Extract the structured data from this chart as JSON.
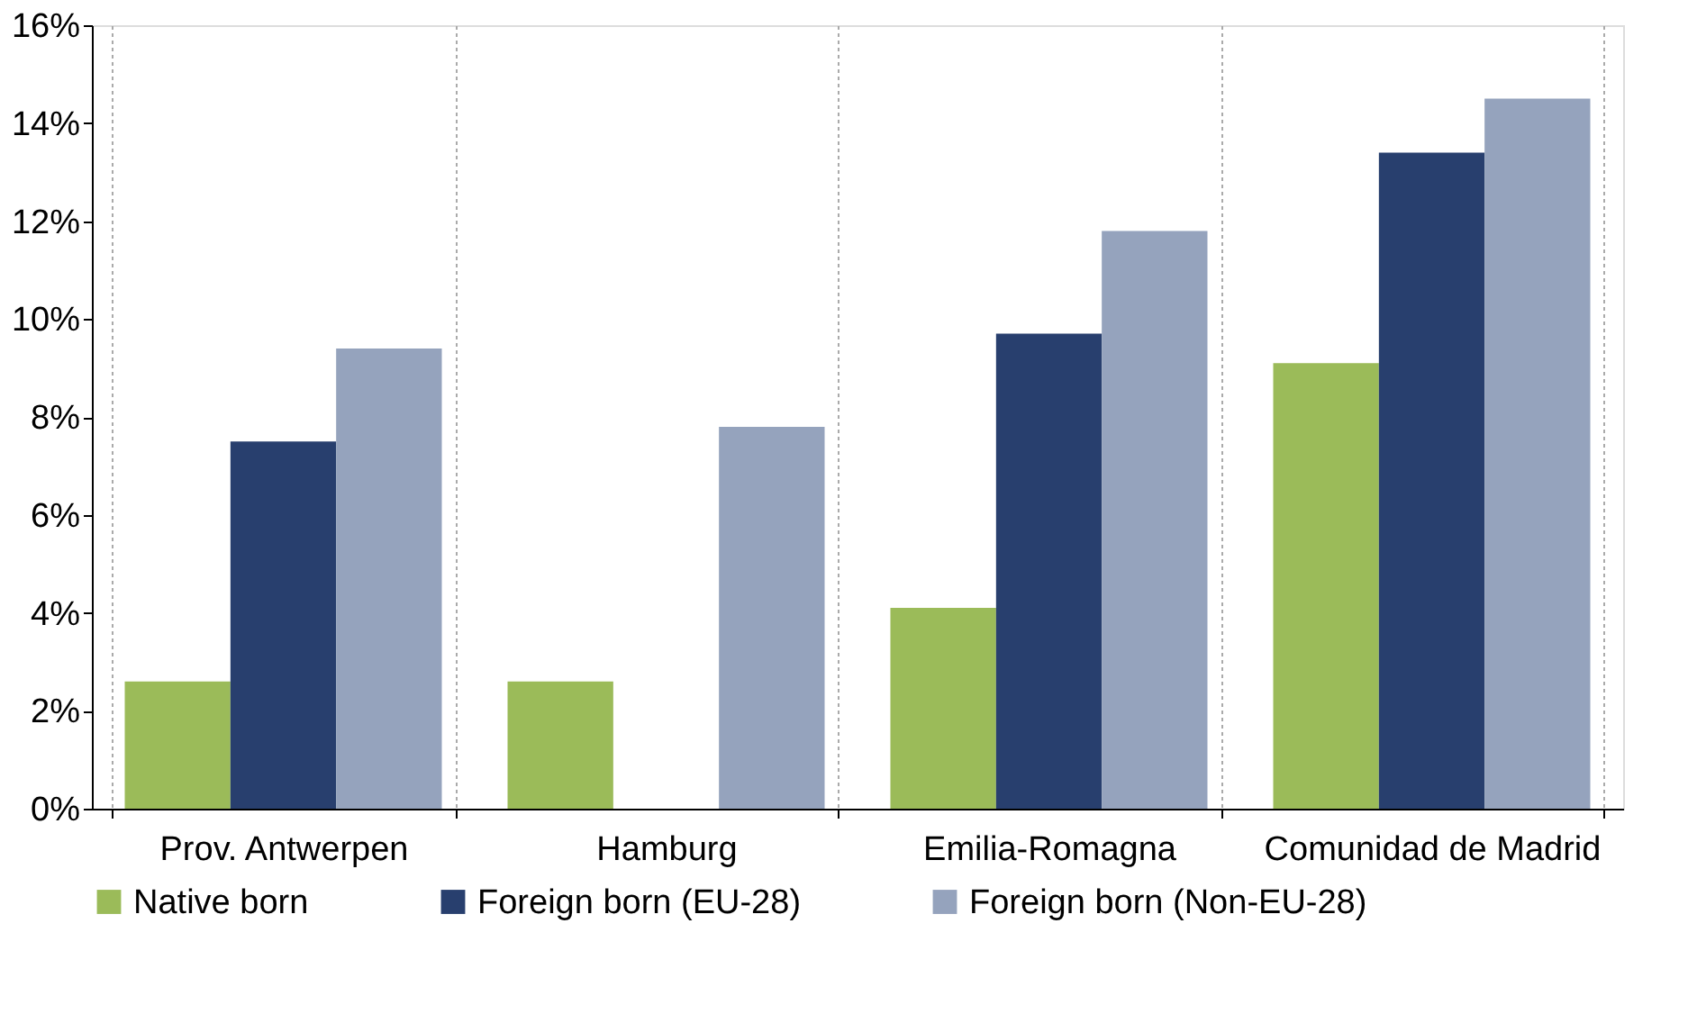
{
  "chart_data": {
    "type": "bar",
    "categories": [
      "Prov. Antwerpen",
      "Hamburg",
      "Emilia-Romagna",
      "Comunidad de Madrid"
    ],
    "series": [
      {
        "name": "Native born",
        "color": "#9bbb59",
        "values": [
          2.6,
          2.6,
          4.1,
          9.1
        ]
      },
      {
        "name": "Foreign born (EU-28)",
        "color": "#283f6e",
        "values": [
          7.5,
          null,
          9.7,
          13.4
        ]
      },
      {
        "name": "Foreign born (Non-EU-28)",
        "color": "#95a3bd",
        "values": [
          9.4,
          7.8,
          11.8,
          14.5
        ]
      }
    ],
    "ylim": [
      0,
      16
    ],
    "yticks": [
      {
        "value": 0,
        "label": "0%"
      },
      {
        "value": 2,
        "label": "2%"
      },
      {
        "value": 4,
        "label": "4%"
      },
      {
        "value": 6,
        "label": "6%"
      },
      {
        "value": 8,
        "label": "8%"
      },
      {
        "value": 10,
        "label": "10%"
      },
      {
        "value": 12,
        "label": "12%"
      },
      {
        "value": 14,
        "label": "14%"
      },
      {
        "value": 16,
        "label": "16%"
      }
    ],
    "grid": "x",
    "legend": "bottom"
  }
}
